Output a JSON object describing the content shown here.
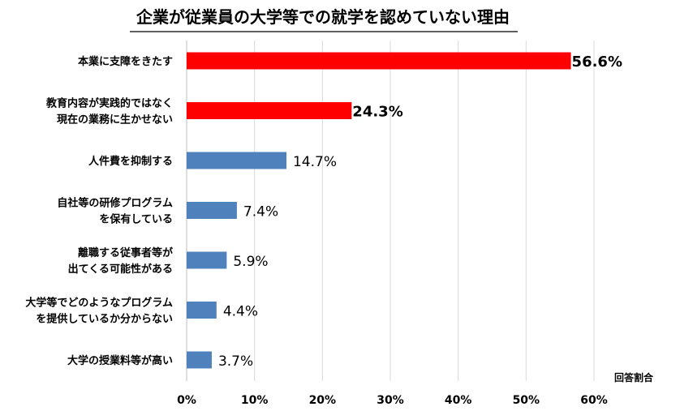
{
  "chart_data": {
    "type": "bar",
    "orientation": "horizontal",
    "title": "企業が従業員の大学等での就学を認めていない理由",
    "xlabel": "回答割合",
    "ylabel": "",
    "xlim": [
      0,
      60
    ],
    "x_ticks": [
      "0%",
      "10%",
      "20%",
      "30%",
      "40%",
      "50%",
      "60%"
    ],
    "grid": "vertical",
    "categories": [
      [
        "本業に支障をきたす"
      ],
      [
        "教育内容が実践的ではなく",
        "現在の業務に生かせない"
      ],
      [
        "人件費を抑制する"
      ],
      [
        "自社等の研修プログラム",
        "を保有している"
      ],
      [
        "離職する従事者等が",
        "出てくる可能性がある"
      ],
      [
        "大学等でどのようなプログラム",
        "を提供しているか分からない"
      ],
      [
        "大学の授業料等が高い"
      ]
    ],
    "values": [
      56.6,
      24.3,
      14.7,
      7.4,
      5.9,
      4.4,
      3.7
    ],
    "value_labels": [
      "56.6%",
      "24.3%",
      "14.7%",
      "7.4%",
      "5.9%",
      "4.4%",
      "3.7%"
    ],
    "highlighted": [
      true,
      true,
      false,
      false,
      false,
      false,
      false
    ],
    "colors": {
      "bar": "#4f81bd",
      "highlight": "#ff0000",
      "highlight_text": "#ff0000",
      "grid": "#d9d9d9",
      "axis": "#bfbfbf",
      "title_rule": "#000000"
    }
  }
}
